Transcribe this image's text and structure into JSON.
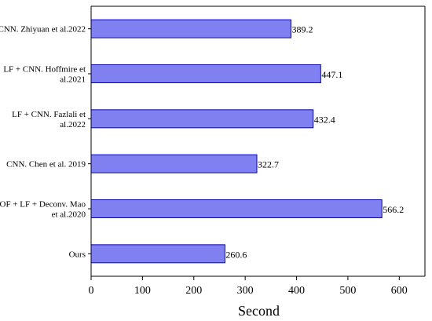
{
  "chart_data": {
    "type": "bar",
    "orientation": "horizontal",
    "categories": [
      [
        "CNN. Zhiyuan et al.2022"
      ],
      [
        "LF + CNN. Hoffmire et",
        "al.2021"
      ],
      [
        "LF + CNN. Fazlali et",
        "al.2022"
      ],
      [
        "CNN. Chen et al. 2019"
      ],
      [
        "OF + LF + Deconv. Mao",
        "et al.2020"
      ],
      [
        "Ours"
      ]
    ],
    "values": [
      389.2,
      447.1,
      432.4,
      322.7,
      566.2,
      260.6
    ],
    "value_labels": [
      "389.2",
      "447.1",
      "432.4",
      "322.7",
      "566.2",
      "260.6"
    ],
    "xlim": [
      0,
      650
    ],
    "x_ticks": [
      0,
      100,
      200,
      300,
      400,
      500,
      600
    ],
    "xlabel": "Second",
    "ylabel": "",
    "title": "",
    "grid": false,
    "bar_color": "#8080f0",
    "bar_edge_color": "#0000cc"
  }
}
